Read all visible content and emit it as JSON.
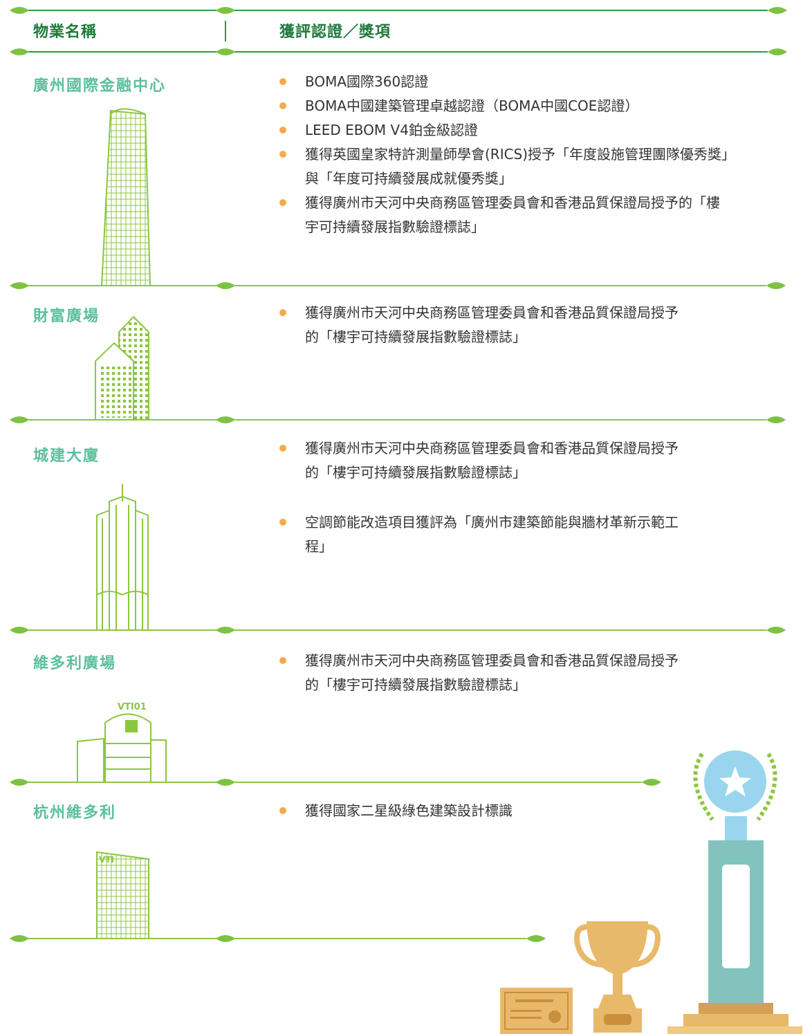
{
  "header": {
    "property": "物業名稱",
    "awards": "獲評認證／獎項"
  },
  "rows": [
    {
      "name": "廣州國際金融中心",
      "awards": [
        "BOMA國際360認證",
        "BOMA中國建築管理卓越認證（BOMA中國COE認證）",
        "LEED EBOM V4鉑金級認證",
        "獲得英國皇家特許測量師學會(RICS)授予「年度設施管理團隊優秀獎」與「年度可持續發展成就優秀獎」",
        "獲得廣州市天河中央商務區管理委員會和香港品質保證局授予的「樓宇可持續發展指數驗證標誌」"
      ]
    },
    {
      "name": "財富廣場",
      "awards": [
        "獲得廣州市天河中央商務區管理委員會和香港品質保證局授予的「樓宇可持續發展指數驗證標誌」"
      ]
    },
    {
      "name": "城建大廈",
      "awards": [
        "獲得廣州市天河中央商務區管理委員會和香港品質保證局授予的「樓宇可持續發展指數驗證標誌」",
        "空調節能改造項目獲評為「廣州市建築節能與牆材革新示範工程」"
      ]
    },
    {
      "name": "維多利廣場",
      "awards": [
        "獲得廣州市天河中央商務區管理委員會和香港品質保證局授予的「樓宇可持續發展指數驗證標誌」"
      ]
    },
    {
      "name": "杭州維多利",
      "awards": [
        "獲得國家二星級綠色建築設計標識"
      ]
    }
  ]
}
